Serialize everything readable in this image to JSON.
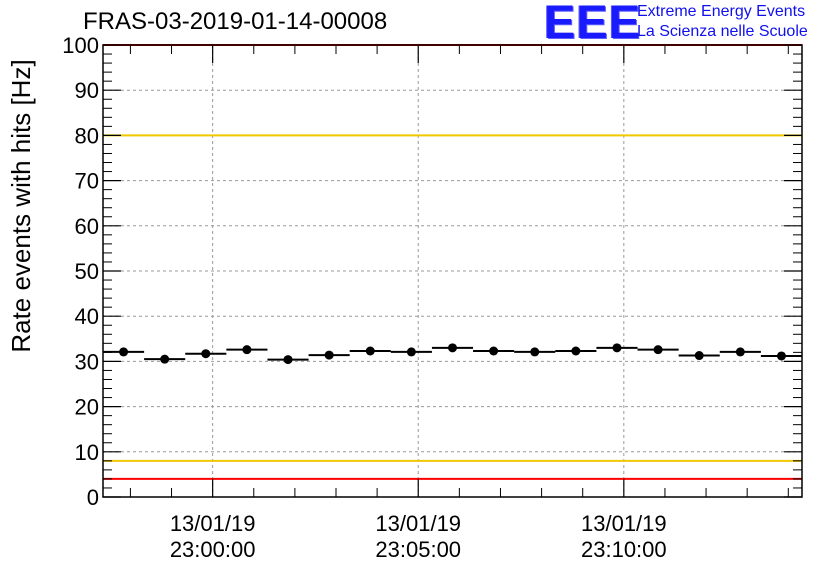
{
  "header": {
    "title": "FRAS-03-2019-01-14-00008"
  },
  "logo": {
    "mark": "EEE",
    "line1": "Extreme Energy Events",
    "line2": "La Scienza nelle Scuole"
  },
  "colors": {
    "red_limit": "#ff0000",
    "yellow_limit": "#f0c800",
    "grid": "#9a9a9a",
    "data": "#000000",
    "logo": "#1010ee"
  },
  "chart_data": {
    "type": "scatter",
    "title": "FRAS-03-2019-01-14-00008",
    "ylabel": "Rate events with hits [Hz]",
    "xlabel": "",
    "ylim": [
      0,
      100
    ],
    "yticks": [
      0,
      10,
      20,
      30,
      40,
      50,
      60,
      70,
      80,
      90,
      100
    ],
    "xlim": [
      "22:57:20",
      "23:14:20"
    ],
    "xticks": [
      {
        "date": "13/01/19",
        "time": "23:00:00"
      },
      {
        "date": "13/01/19",
        "time": "23:05:00"
      },
      {
        "date": "13/01/19",
        "time": "23:10:00"
      }
    ],
    "grid": true,
    "reference_lines": [
      {
        "y": 100,
        "color": "red"
      },
      {
        "y": 80,
        "color": "yellow"
      },
      {
        "y": 8,
        "color": "yellow"
      },
      {
        "y": 4,
        "color": "red"
      }
    ],
    "bin_width_seconds": 60,
    "x": [
      "22:57:50",
      "22:58:50",
      "22:59:50",
      "23:00:50",
      "23:01:50",
      "23:02:50",
      "23:03:50",
      "23:04:50",
      "23:05:50",
      "23:06:50",
      "23:07:50",
      "23:08:50",
      "23:09:50",
      "23:10:50",
      "23:11:50",
      "23:12:50",
      "23:13:50"
    ],
    "values": [
      32.1,
      30.5,
      31.7,
      32.6,
      30.4,
      31.4,
      32.3,
      32.1,
      33.0,
      32.3,
      32.1,
      32.3,
      33.0,
      32.6,
      31.3,
      32.1,
      31.2
    ]
  }
}
